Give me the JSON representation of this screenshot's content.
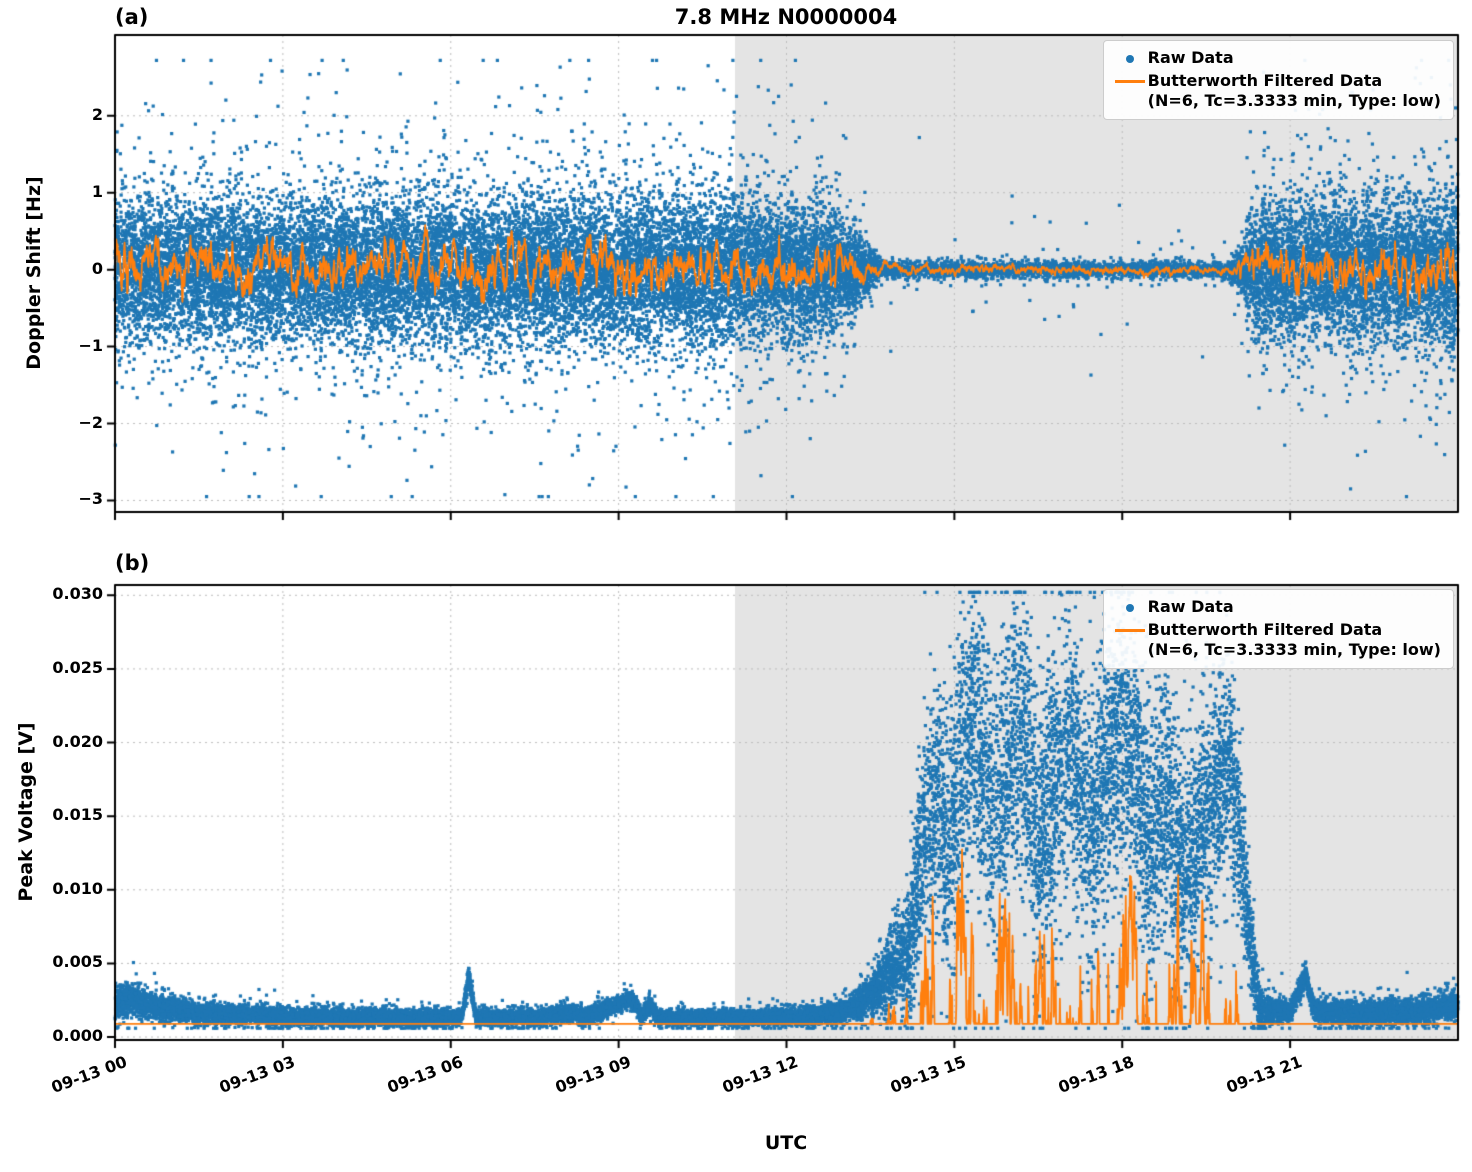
{
  "figure": {
    "panel_labels": [
      "(a)",
      "(b)"
    ],
    "shade_color": "#e4e4e4",
    "grid_color": "#bdbdbd",
    "background": "#ffffff"
  },
  "chart_data": [
    {
      "type": "scatter+line",
      "title": "7.8 MHz N0000004",
      "ylabel": "Doppler Shift [Hz]",
      "xlim": [
        0,
        24
      ],
      "ylim": [
        -3.15,
        3.05
      ],
      "yticks": {
        "values": [
          -3,
          -2,
          -1,
          0,
          1,
          2
        ],
        "labels": [
          "−3",
          "−2",
          "−1",
          "0",
          "1",
          "2"
        ]
      },
      "xticks": {
        "values": [
          0,
          3,
          6,
          9,
          12,
          15,
          18,
          21
        ],
        "labels": [
          "09-13 00",
          "09-13 03",
          "09-13 06",
          "09-13 09",
          "09-13 12",
          "09-13 15",
          "09-13 18",
          "09-13 21"
        ]
      },
      "show_x_labels": false,
      "shade": {
        "start": 11.08,
        "end": 24
      },
      "legend_position": "upper right",
      "grid": true,
      "series": {
        "raw": {
          "name": "Raw Data",
          "color": "#1f77b4",
          "marker": "dot",
          "n_points": 34000,
          "clip": [
            -2.95,
            2.72
          ],
          "outliers": {
            "frac": 0.02,
            "boost": 2.6,
            "quiet_below": 0.1,
            "quiet_boost": 10
          },
          "spread_env": {
            "t": [
              0,
              10.5,
              12.0,
              12.8,
              13.2,
              13.5,
              13.8,
              19.9,
              20.15,
              20.45,
              23.0,
              23.5,
              24
            ],
            "v": [
              0.52,
              0.55,
              0.52,
              0.44,
              0.3,
              0.16,
              0.06,
              0.055,
              0.22,
              0.5,
              0.5,
              0.58,
              0.6
            ]
          },
          "density_env": {
            "t": [
              0,
              13.2,
              13.7,
              19.9,
              20.35,
              24
            ],
            "v": [
              1,
              1,
              0.3,
              0.3,
              1,
              1
            ]
          }
        },
        "filtered": {
          "name": "Butterworth Filtered Data",
          "detail": "(N=6, Tc=3.3333 min, Type: low)",
          "color": "#ff7f0e",
          "amp_env": {
            "t": [
              0,
              12.5,
              13.2,
              13.8,
              19.9,
              20.3,
              20.6,
              24
            ],
            "v": [
              0.16,
              0.16,
              0.1,
              0.035,
              0.032,
              0.12,
              0.17,
              0.17
            ]
          }
        }
      }
    },
    {
      "type": "scatter+line",
      "ylabel": "Peak Voltage [V]",
      "xlabel": "UTC",
      "xlim": [
        0,
        24
      ],
      "ylim": [
        -0.0002,
        0.0307
      ],
      "yticks": {
        "values": [
          0.0,
          0.005,
          0.01,
          0.015,
          0.02,
          0.025,
          0.03
        ],
        "labels": [
          "0.000",
          "0.005",
          "0.010",
          "0.015",
          "0.020",
          "0.025",
          "0.030"
        ]
      },
      "xticks": {
        "values": [
          0,
          3,
          6,
          9,
          12,
          15,
          18,
          21
        ],
        "labels": [
          "09-13 00",
          "09-13 03",
          "09-13 06",
          "09-13 09",
          "09-13 12",
          "09-13 15",
          "09-13 18",
          "09-13 21"
        ]
      },
      "show_x_labels": true,
      "shade": {
        "start": 11.08,
        "end": 24
      },
      "legend_position": "upper right",
      "grid": true,
      "series": {
        "raw": {
          "name": "Raw Data",
          "color": "#1f77b4",
          "marker": "dot",
          "n_points": 24000,
          "clip": [
            0.0006,
            0.0302
          ],
          "outliers": {
            "frac": 0.03,
            "boost": 1.5
          },
          "center_env": {
            "t": [
              0,
              0.25,
              0.6,
              1.5,
              3,
              5,
              6.2,
              6.32,
              6.45,
              7.5,
              8.2,
              8.35,
              9.25,
              9.4,
              9.55,
              9.7,
              11,
              12.3,
              13.0,
              13.5,
              13.9,
              14.2,
              14.45,
              14.7,
              14.9,
              15.1,
              15.4,
              15.7,
              16.0,
              16.2,
              16.5,
              16.8,
              17.1,
              17.4,
              17.7,
              18.0,
              18.2,
              18.5,
              18.8,
              19.1,
              19.4,
              19.7,
              19.95,
              20.1,
              20.3,
              20.45,
              21.0,
              21.28,
              21.42,
              22.5,
              23.5,
              24
            ],
            "v": [
              0.0021,
              0.0027,
              0.0021,
              0.0016,
              0.0014,
              0.0013,
              0.0013,
              0.0042,
              0.0013,
              0.0013,
              0.0017,
              0.0013,
              0.0026,
              0.0014,
              0.0022,
              0.0013,
              0.0013,
              0.0014,
              0.0017,
              0.0028,
              0.0045,
              0.006,
              0.014,
              0.016,
              0.012,
              0.019,
              0.021,
              0.015,
              0.019,
              0.021,
              0.013,
              0.017,
              0.02,
              0.014,
              0.018,
              0.021,
              0.019,
              0.013,
              0.016,
              0.011,
              0.014,
              0.017,
              0.019,
              0.013,
              0.006,
              0.002,
              0.0017,
              0.0042,
              0.0018,
              0.0016,
              0.0018,
              0.0022
            ]
          },
          "spread_env": {
            "t": [
              0,
              0.5,
              2,
              6,
              12,
              13,
              13.5,
              14,
              14.45,
              15,
              16,
              17,
              18,
              19,
              19.9,
              20.15,
              20.35,
              20.6,
              21,
              24
            ],
            "v": [
              0.0006,
              0.0005,
              0.00035,
              0.0003,
              0.0003,
              0.0004,
              0.0008,
              0.0018,
              0.004,
              0.005,
              0.0055,
              0.005,
              0.0055,
              0.0045,
              0.0045,
              0.003,
              0.0015,
              0.0005,
              0.0004,
              0.0005
            ]
          },
          "density_env": {
            "t": [
              0,
              24
            ],
            "v": [
              1,
              1
            ]
          }
        },
        "filtered": {
          "name": "Butterworth Filtered Data",
          "detail": "(N=6, Tc=3.3333 min, Type: low)",
          "color": "#ff7f0e",
          "min": 0.0009,
          "amp_env": {
            "t": [
              0,
              12,
              13,
              13.5,
              14,
              14.45,
              15,
              16,
              17,
              18,
              19,
              19.9,
              20.15,
              20.35,
              20.6,
              24
            ],
            "v": [
              0.00015,
              0.00015,
              0.00025,
              0.0006,
              0.0014,
              0.0032,
              0.004,
              0.0045,
              0.004,
              0.0045,
              0.0036,
              0.0036,
              0.0022,
              0.0008,
              0.00015,
              0.00015
            ]
          }
        }
      }
    }
  ]
}
